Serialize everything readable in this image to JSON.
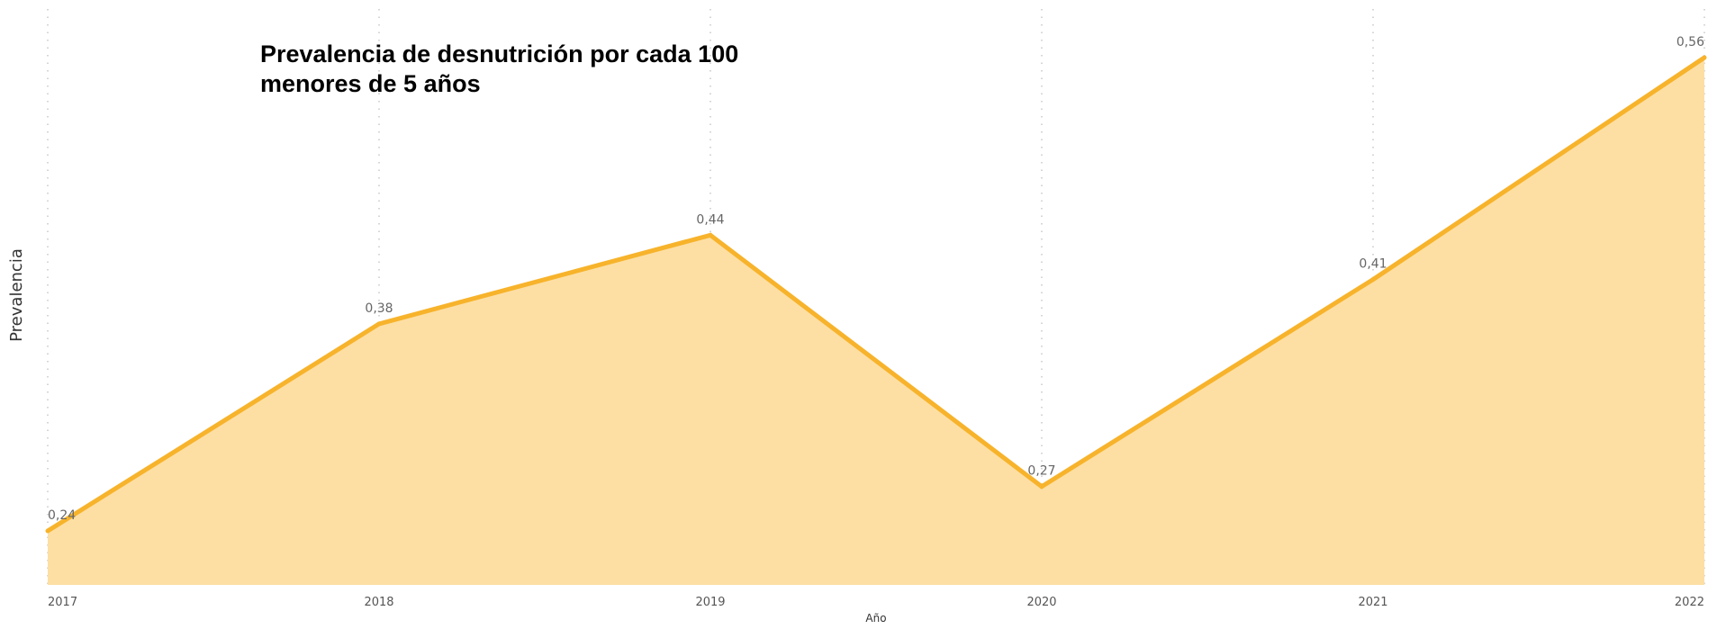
{
  "colors": {
    "line": "#F7B32B",
    "area": "#FDDFA4",
    "grid": "#C8C8C8"
  },
  "chart_data": {
    "type": "area",
    "title": "Prevalencia de desnutrición por cada 100 menores de 5 años",
    "xlabel": "Año",
    "ylabel": "Prevalencia",
    "categories": [
      "2017",
      "2018",
      "2019",
      "2020",
      "2021",
      "2022"
    ],
    "series": [
      {
        "values": [
          0.24,
          0.38,
          0.44,
          0.27,
          0.41,
          0.56
        ],
        "labels": [
          "0,24",
          "0,38",
          "0,44",
          "0,27",
          "0,41",
          "0,56"
        ]
      }
    ],
    "ylim": [
      0.2,
      0.6
    ],
    "grid": "vertical-dotted",
    "legend": "none"
  }
}
